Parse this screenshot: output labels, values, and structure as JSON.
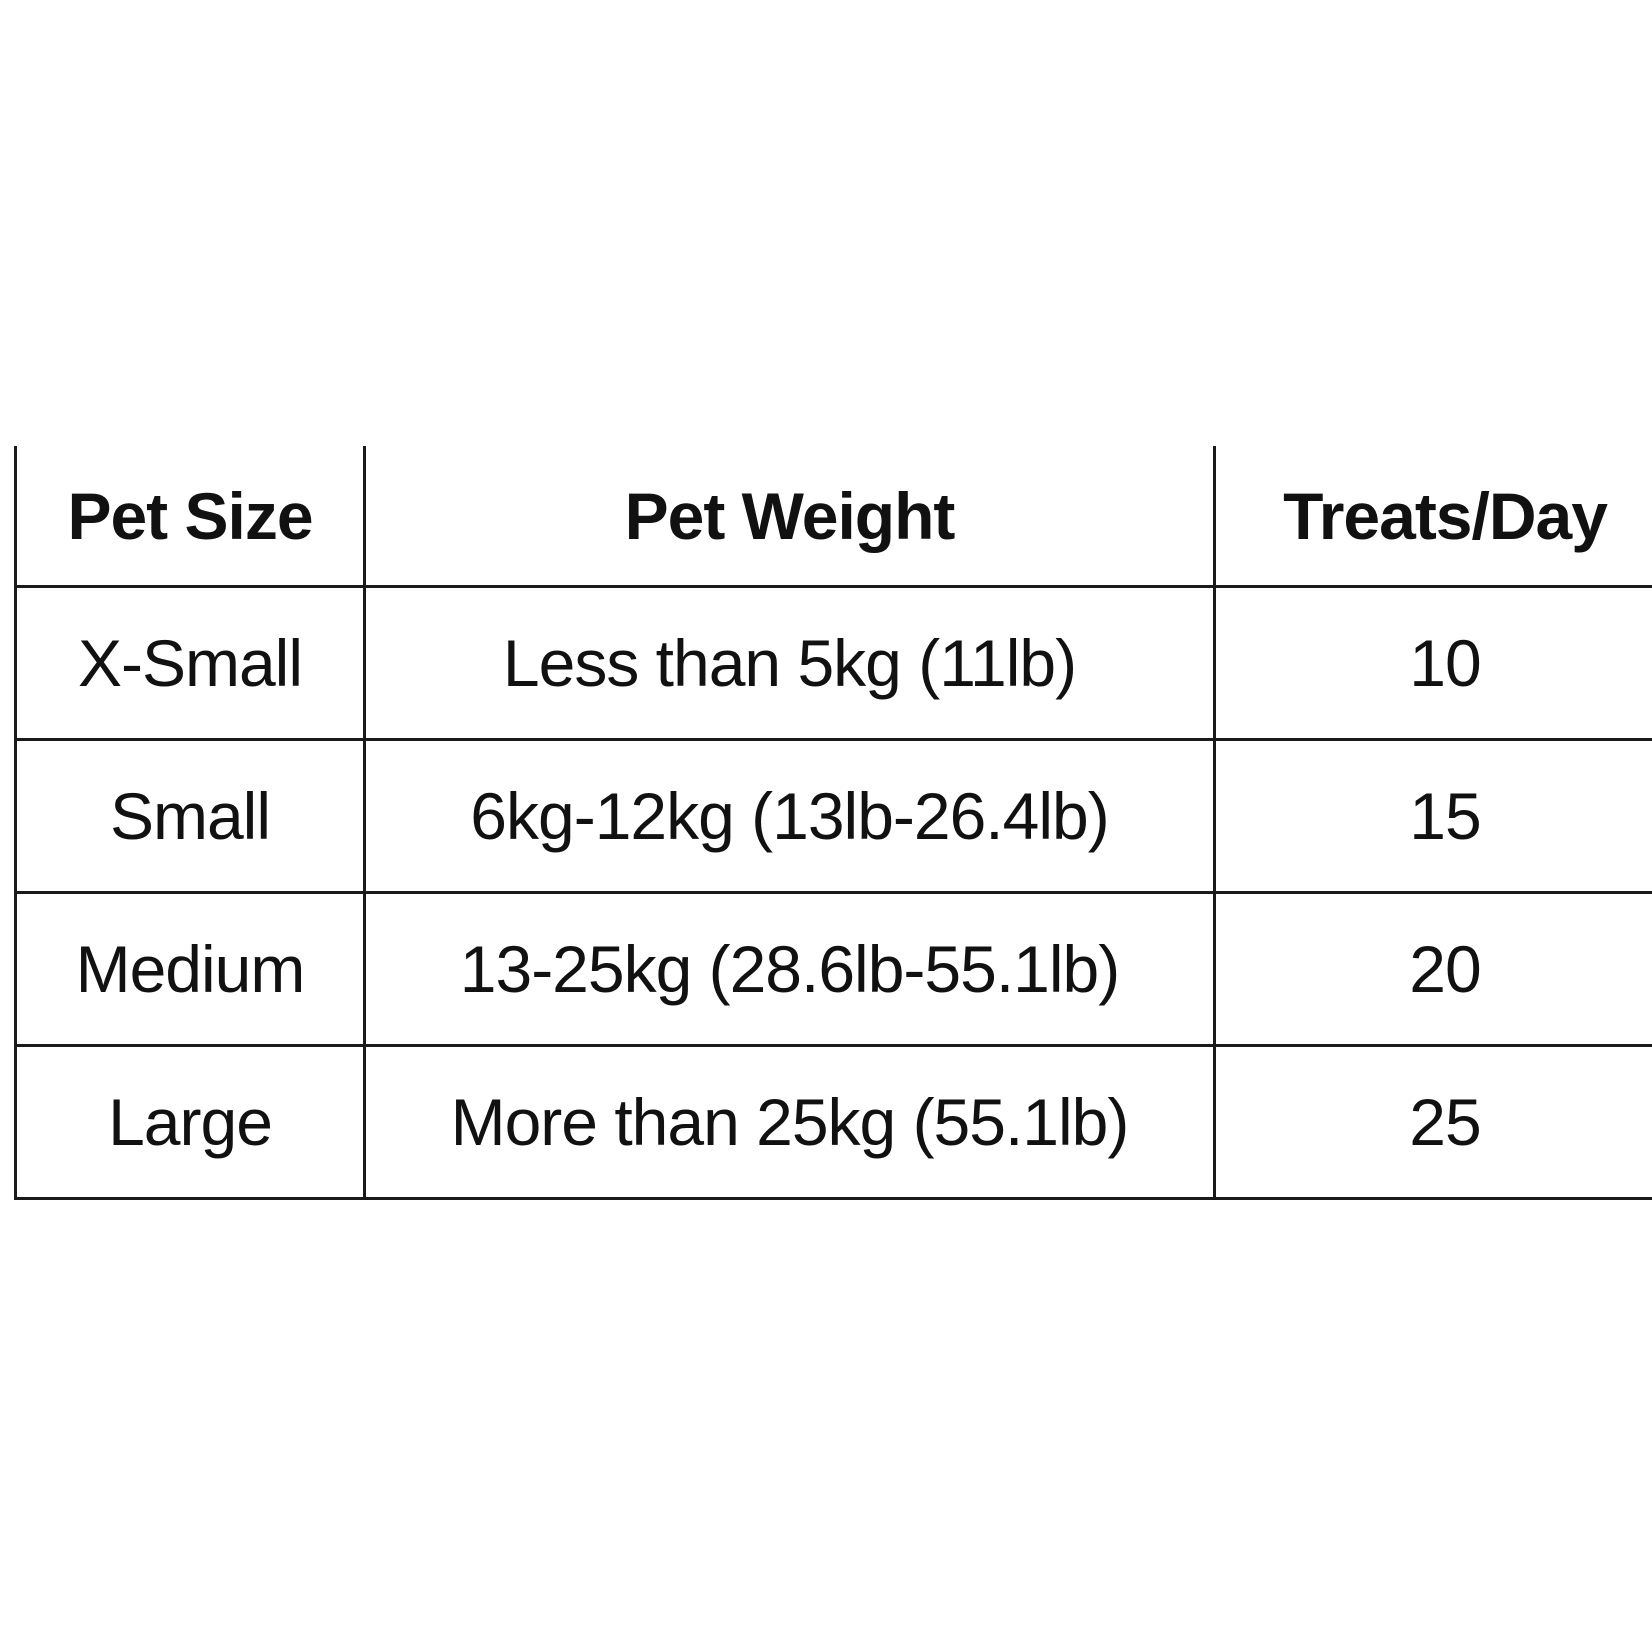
{
  "table": {
    "headers": [
      "Pet Size",
      "Pet Weight",
      "Treats/Day"
    ],
    "rows": [
      [
        "X-Small",
        "Less than 5kg (11lb)",
        "10"
      ],
      [
        "Small",
        "6kg-12kg (13lb-26.4lb)",
        "15"
      ],
      [
        "Medium",
        "13-25kg (28.6lb-55.1lb)",
        "20"
      ],
      [
        "Large",
        "More than 25kg (55.1lb)",
        "25"
      ]
    ]
  },
  "colors": {
    "text": "#111111",
    "border": "#1a1a1a",
    "background": "#ffffff"
  }
}
